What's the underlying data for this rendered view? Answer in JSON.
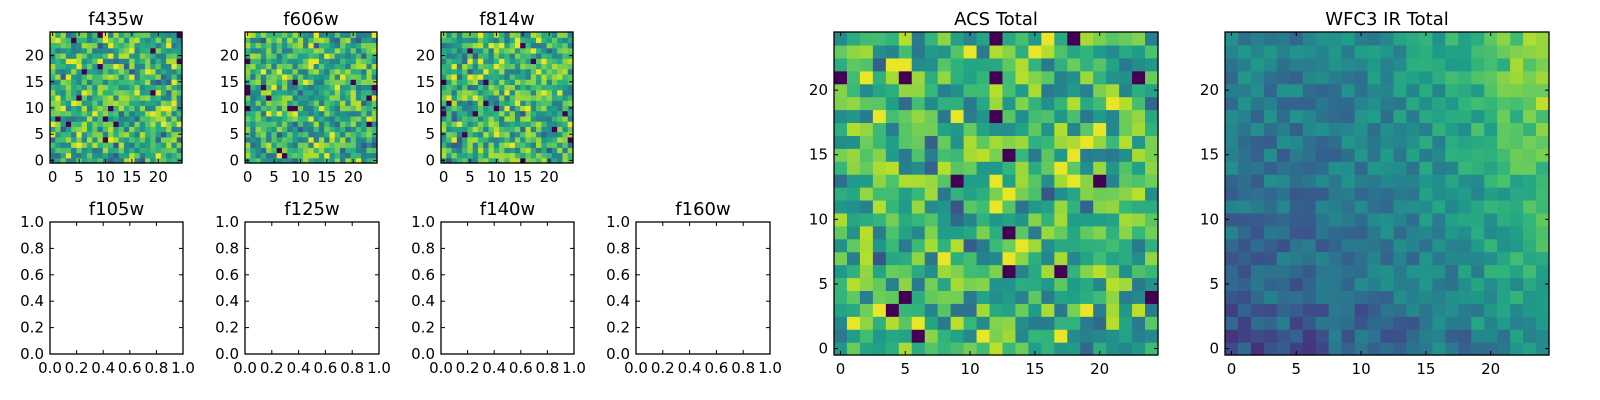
{
  "chart_data": [
    {
      "type": "heatmap",
      "title": "f435w",
      "xticks": [
        "0",
        "5",
        "10",
        "15",
        "20"
      ],
      "yticks": [
        "0",
        "5",
        "10",
        "15",
        "20"
      ],
      "xlim": [
        -0.5,
        24.5
      ],
      "ylim": [
        -0.5,
        24.5
      ],
      "grid": 25,
      "colormap": "viridis",
      "seed": 11,
      "pattern": "noise"
    },
    {
      "type": "heatmap",
      "title": "f606w",
      "xticks": [
        "0",
        "5",
        "10",
        "15",
        "20"
      ],
      "yticks": [
        "0",
        "5",
        "10",
        "15",
        "20"
      ],
      "xlim": [
        -0.5,
        24.5
      ],
      "ylim": [
        -0.5,
        24.5
      ],
      "grid": 25,
      "colormap": "viridis",
      "seed": 23,
      "pattern": "noise"
    },
    {
      "type": "heatmap",
      "title": "f814w",
      "xticks": [
        "0",
        "5",
        "10",
        "15",
        "20"
      ],
      "yticks": [
        "0",
        "5",
        "10",
        "15",
        "20"
      ],
      "xlim": [
        -0.5,
        24.5
      ],
      "ylim": [
        -0.5,
        24.5
      ],
      "grid": 25,
      "colormap": "viridis",
      "seed": 37,
      "pattern": "noise"
    },
    {
      "type": "empty",
      "title": "f105w",
      "xticks": [
        "0.0",
        "0.2",
        "0.4",
        "0.6",
        "0.8",
        "1.0"
      ],
      "yticks": [
        "0.0",
        "0.2",
        "0.4",
        "0.6",
        "0.8",
        "1.0"
      ],
      "xlim": [
        0,
        1
      ],
      "ylim": [
        0,
        1
      ]
    },
    {
      "type": "empty",
      "title": "f125w",
      "xticks": [
        "0.0",
        "0.2",
        "0.4",
        "0.6",
        "0.8",
        "1.0"
      ],
      "yticks": [
        "0.0",
        "0.2",
        "0.4",
        "0.6",
        "0.8",
        "1.0"
      ],
      "xlim": [
        0,
        1
      ],
      "ylim": [
        0,
        1
      ]
    },
    {
      "type": "empty",
      "title": "f140w",
      "xticks": [
        "0.0",
        "0.2",
        "0.4",
        "0.6",
        "0.8",
        "1.0"
      ],
      "yticks": [
        "0.0",
        "0.2",
        "0.4",
        "0.6",
        "0.8",
        "1.0"
      ],
      "xlim": [
        0,
        1
      ],
      "ylim": [
        0,
        1
      ]
    },
    {
      "type": "empty",
      "title": "f160w",
      "xticks": [
        "0.0",
        "0.2",
        "0.4",
        "0.6",
        "0.8",
        "1.0"
      ],
      "yticks": [
        "0.0",
        "0.2",
        "0.4",
        "0.6",
        "0.8",
        "1.0"
      ],
      "xlim": [
        0,
        1
      ],
      "ylim": [
        0,
        1
      ]
    },
    {
      "type": "heatmap",
      "title": "ACS Total",
      "xticks": [
        "0",
        "5",
        "10",
        "15",
        "20"
      ],
      "yticks": [
        "0",
        "5",
        "10",
        "15",
        "20"
      ],
      "xlim": [
        -0.5,
        24.5
      ],
      "ylim": [
        -0.5,
        24.5
      ],
      "grid": 25,
      "colormap": "viridis",
      "seed": 51,
      "pattern": "noise"
    },
    {
      "type": "heatmap",
      "title": "WFC3 IR Total",
      "xticks": [
        "0",
        "5",
        "10",
        "15",
        "20"
      ],
      "yticks": [
        "0",
        "5",
        "10",
        "15",
        "20"
      ],
      "xlim": [
        -0.5,
        24.5
      ],
      "ylim": [
        -0.5,
        24.5
      ],
      "grid": 25,
      "colormap": "viridis",
      "seed": 67,
      "pattern": "smooth"
    }
  ]
}
